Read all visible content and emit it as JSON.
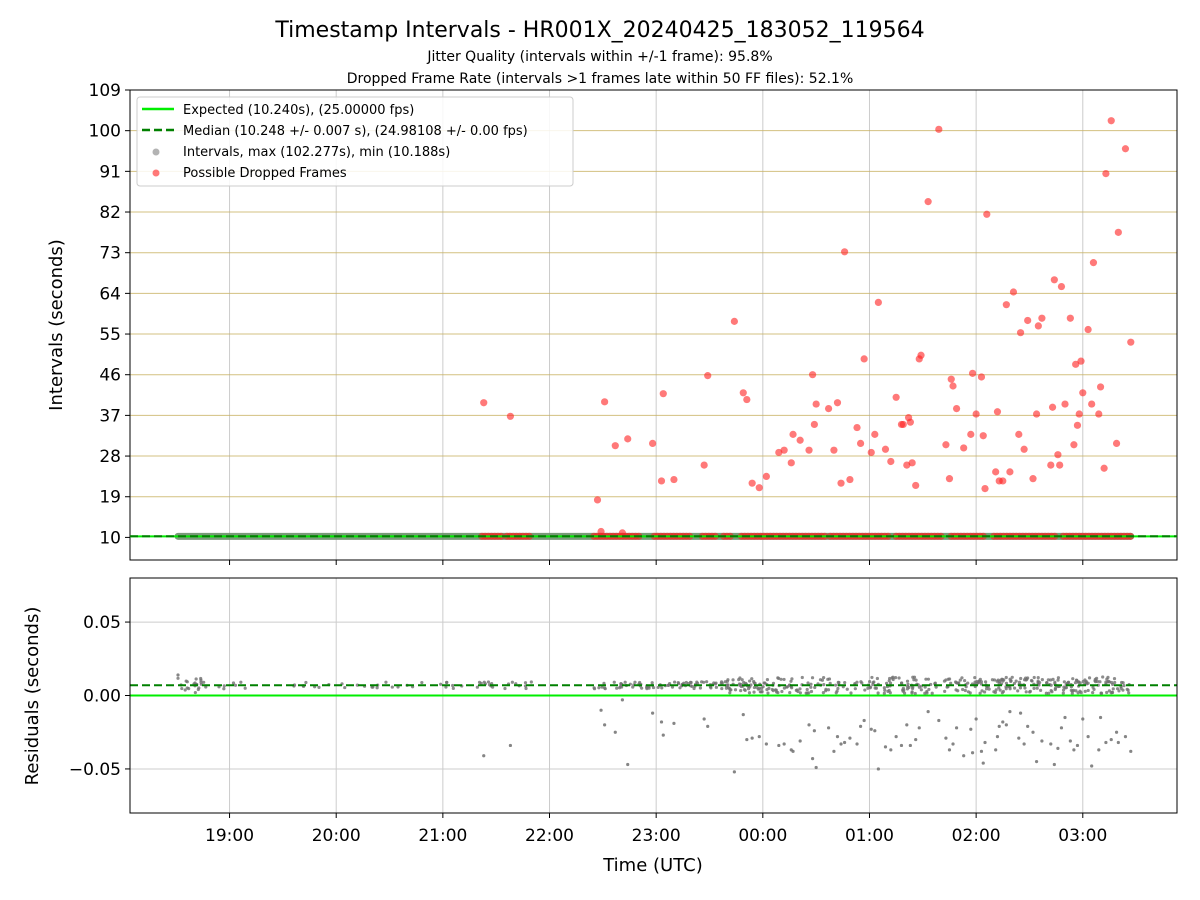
{
  "chart_data": [
    {
      "type": "scatter",
      "panel": "top",
      "title": "Timestamp Intervals - HR001X_20240425_183052_119564",
      "subtitle_1": "Jitter Quality (intervals within +/-1 frame): 95.8%",
      "subtitle_2": "Dropped Frame Rate (intervals >1 frames late within 50 FF files): 52.1%",
      "ylabel": "Intervals (seconds)",
      "ylim": [
        5,
        109
      ],
      "yticks": [
        "10",
        "19",
        "28",
        "37",
        "46",
        "55",
        "64",
        "73",
        "82",
        "91",
        "100",
        "109"
      ],
      "grid_y_color": "#c8b060",
      "legend_position": "upper-left",
      "legend": [
        {
          "label": "Expected (10.240s), (25.00000 fps)",
          "style": "solid-line",
          "color": "#00ee00"
        },
        {
          "label": "Median (10.248 +/- 0.007 s), (24.98108 +/- 0.00 fps)",
          "style": "dashed-line",
          "color": "#008000"
        },
        {
          "label": "Intervals, max (102.277s), min (10.188s)",
          "style": "dot",
          "color": "#808080"
        },
        {
          "label": "Possible Dropped Frames",
          "style": "dot",
          "color": "#ff2020"
        }
      ],
      "expected_interval": 10.24,
      "median_interval": 10.248,
      "normal_intervals_span": {
        "start": "18:31",
        "end": "03:27",
        "value": 10.24
      },
      "dropped_frame_clusters_at_10s": [
        [
          "21:22",
          "21:33"
        ],
        [
          "21:36",
          "21:49"
        ],
        [
          "22:25",
          "22:52"
        ],
        [
          "22:59",
          "23:20"
        ],
        [
          "23:26",
          "23:35"
        ],
        [
          "23:38",
          "23:43"
        ],
        [
          "23:48",
          "00:35"
        ],
        [
          "00:38",
          "01:12"
        ],
        [
          "01:15",
          "01:41"
        ],
        [
          "01:46",
          "02:05"
        ],
        [
          "02:10",
          "02:45"
        ],
        [
          "02:49",
          "03:27"
        ]
      ],
      "series": [
        {
          "name": "Possible Dropped Frames",
          "points": [
            [
              "21:23",
              39.8
            ],
            [
              "21:38",
              36.8
            ],
            [
              "22:27",
              18.3
            ],
            [
              "22:29",
              11.3
            ],
            [
              "22:31",
              40
            ],
            [
              "22:37",
              30.3
            ],
            [
              "22:41",
              11
            ],
            [
              "22:44",
              31.8
            ],
            [
              "22:58",
              30.8
            ],
            [
              "23:03",
              22.5
            ],
            [
              "23:04",
              41.8
            ],
            [
              "23:10",
              22.8
            ],
            [
              "23:27",
              26
            ],
            [
              "23:29",
              45.8
            ],
            [
              "23:44",
              57.8
            ],
            [
              "23:49",
              42
            ],
            [
              "23:51",
              40.5
            ],
            [
              "23:54",
              22
            ],
            [
              "23:58",
              21
            ],
            [
              "00:02",
              23.5
            ],
            [
              "00:09",
              28.8
            ],
            [
              "00:12",
              29.3
            ],
            [
              "00:16",
              26.5
            ],
            [
              "00:17",
              32.8
            ],
            [
              "00:21",
              31.5
            ],
            [
              "00:26",
              29.3
            ],
            [
              "00:28",
              46
            ],
            [
              "00:29",
              35
            ],
            [
              "00:30",
              39.5
            ],
            [
              "00:37",
              38.5
            ],
            [
              "00:40",
              29.3
            ],
            [
              "00:42",
              39.8
            ],
            [
              "00:44",
              22
            ],
            [
              "00:46",
              73.2
            ],
            [
              "00:49",
              22.8
            ],
            [
              "00:53",
              34.3
            ],
            [
              "00:55",
              30.8
            ],
            [
              "00:57",
              49.5
            ],
            [
              "01:01",
              28.8
            ],
            [
              "01:03",
              32.8
            ],
            [
              "01:05",
              62
            ],
            [
              "01:09",
              29.5
            ],
            [
              "01:12",
              26.8
            ],
            [
              "01:15",
              41
            ],
            [
              "01:18",
              35
            ],
            [
              "01:19",
              35
            ],
            [
              "01:21",
              26
            ],
            [
              "01:22",
              36.5
            ],
            [
              "01:23",
              35.5
            ],
            [
              "01:24",
              26.5
            ],
            [
              "01:26",
              21.5
            ],
            [
              "01:28",
              49.5
            ],
            [
              "01:29",
              50.3
            ],
            [
              "01:33",
              84.3
            ],
            [
              "01:39",
              100.3
            ],
            [
              "01:43",
              30.5
            ],
            [
              "01:45",
              23
            ],
            [
              "01:46",
              45
            ],
            [
              "01:47",
              43.5
            ],
            [
              "01:49",
              38.5
            ],
            [
              "01:53",
              29.8
            ],
            [
              "01:57",
              32.8
            ],
            [
              "01:58",
              46.3
            ],
            [
              "02:00",
              37.3
            ],
            [
              "02:03",
              45.5
            ],
            [
              "02:04",
              32.5
            ],
            [
              "02:05",
              20.8
            ],
            [
              "02:06",
              81.5
            ],
            [
              "02:11",
              24.5
            ],
            [
              "02:12",
              37.8
            ],
            [
              "02:13",
              22.5
            ],
            [
              "02:15",
              22.5
            ],
            [
              "02:17",
              61.5
            ],
            [
              "02:19",
              24.5
            ],
            [
              "02:21",
              64.3
            ],
            [
              "02:24",
              32.8
            ],
            [
              "02:25",
              55.3
            ],
            [
              "02:27",
              29.5
            ],
            [
              "02:29",
              58
            ],
            [
              "02:32",
              23
            ],
            [
              "02:34",
              37.3
            ],
            [
              "02:35",
              56.8
            ],
            [
              "02:37",
              58.5
            ],
            [
              "02:42",
              26
            ],
            [
              "02:43",
              38.8
            ],
            [
              "02:44",
              67
            ],
            [
              "02:46",
              28.3
            ],
            [
              "02:47",
              26
            ],
            [
              "02:48",
              65.5
            ],
            [
              "02:50",
              39.5
            ],
            [
              "02:53",
              58.5
            ],
            [
              "02:55",
              30.5
            ],
            [
              "02:56",
              48.3
            ],
            [
              "02:57",
              34.8
            ],
            [
              "02:58",
              37.3
            ],
            [
              "02:59",
              49
            ],
            [
              "03:00",
              42
            ],
            [
              "03:03",
              56
            ],
            [
              "03:05",
              39.5
            ],
            [
              "03:06",
              70.8
            ],
            [
              "03:09",
              37.3
            ],
            [
              "03:10",
              43.3
            ],
            [
              "03:12",
              25.3
            ],
            [
              "03:13",
              90.5
            ],
            [
              "03:16",
              102.2
            ],
            [
              "03:19",
              30.8
            ],
            [
              "03:20",
              77.5
            ],
            [
              "03:24",
              96
            ],
            [
              "03:27",
              53.2
            ]
          ]
        }
      ]
    },
    {
      "type": "scatter",
      "panel": "bottom",
      "xlabel": "Time (UTC)",
      "ylabel": "Residuals (seconds)",
      "ylim": [
        -0.08,
        0.08
      ],
      "yticks": [
        "0.05",
        "0.00",
        "−0.05"
      ],
      "ytick_values": [
        0.05,
        0.0,
        -0.05
      ],
      "xticks": [
        "19:00",
        "20:00",
        "21:00",
        "22:00",
        "23:00",
        "00:00",
        "01:00",
        "02:00",
        "03:00"
      ],
      "x_range": [
        "18:04",
        "03:53"
      ],
      "expected_residual": 0.0,
      "median_residual": 0.007,
      "series": [
        {
          "name": "Intervals",
          "color": "#707070",
          "dense_band": {
            "center": 0.007,
            "spread": 0.004
          },
          "outliers": [
            [
              "18:31",
              0.014
            ],
            [
              "21:23",
              -0.041
            ],
            [
              "21:38",
              -0.034
            ],
            [
              "22:29",
              -0.01
            ],
            [
              "22:31",
              -0.02
            ],
            [
              "22:37",
              -0.025
            ],
            [
              "22:41",
              -0.003
            ],
            [
              "22:44",
              -0.047
            ],
            [
              "22:58",
              -0.012
            ],
            [
              "23:03",
              -0.018
            ],
            [
              "23:04",
              -0.027
            ],
            [
              "23:10",
              -0.019
            ],
            [
              "23:27",
              -0.016
            ],
            [
              "23:29",
              -0.021
            ],
            [
              "23:44",
              -0.052
            ],
            [
              "23:49",
              -0.013
            ],
            [
              "23:51",
              -0.03
            ],
            [
              "23:54",
              -0.029
            ],
            [
              "23:58",
              -0.028
            ],
            [
              "00:02",
              -0.033
            ],
            [
              "00:09",
              -0.034
            ],
            [
              "00:12",
              -0.033
            ],
            [
              "00:16",
              -0.037
            ],
            [
              "00:17",
              -0.038
            ],
            [
              "00:21",
              -0.031
            ],
            [
              "00:26",
              -0.02
            ],
            [
              "00:28",
              -0.043
            ],
            [
              "00:29",
              -0.024
            ],
            [
              "00:30",
              -0.049
            ],
            [
              "00:37",
              -0.022
            ],
            [
              "00:40",
              -0.038
            ],
            [
              "00:42",
              -0.028
            ],
            [
              "00:44",
              -0.033
            ],
            [
              "00:46",
              -0.032
            ],
            [
              "00:49",
              -0.029
            ],
            [
              "00:53",
              -0.033
            ],
            [
              "00:55",
              -0.021
            ],
            [
              "00:57",
              -0.017
            ],
            [
              "01:01",
              -0.023
            ],
            [
              "01:03",
              -0.024
            ],
            [
              "01:05",
              -0.05
            ],
            [
              "01:09",
              -0.035
            ],
            [
              "01:12",
              -0.037
            ],
            [
              "01:15",
              -0.028
            ],
            [
              "01:18",
              -0.034
            ],
            [
              "01:21",
              -0.02
            ],
            [
              "01:23",
              -0.034
            ],
            [
              "01:26",
              -0.03
            ],
            [
              "01:28",
              -0.022
            ],
            [
              "01:33",
              -0.011
            ],
            [
              "01:39",
              -0.017
            ],
            [
              "01:43",
              -0.029
            ],
            [
              "01:45",
              -0.037
            ],
            [
              "01:47",
              -0.033
            ],
            [
              "01:49",
              -0.022
            ],
            [
              "01:53",
              -0.041
            ],
            [
              "01:57",
              -0.023
            ],
            [
              "01:58",
              -0.039
            ],
            [
              "02:00",
              -0.016
            ],
            [
              "02:03",
              -0.038
            ],
            [
              "02:04",
              -0.046
            ],
            [
              "02:05",
              -0.032
            ],
            [
              "02:11",
              -0.037
            ],
            [
              "02:12",
              -0.028
            ],
            [
              "02:13",
              -0.021
            ],
            [
              "02:15",
              -0.018
            ],
            [
              "02:17",
              -0.02
            ],
            [
              "02:19",
              -0.011
            ],
            [
              "02:24",
              -0.029
            ],
            [
              "02:25",
              -0.012
            ],
            [
              "02:27",
              -0.033
            ],
            [
              "02:29",
              -0.021
            ],
            [
              "02:32",
              -0.025
            ],
            [
              "02:34",
              -0.045
            ],
            [
              "02:37",
              -0.031
            ],
            [
              "02:42",
              -0.033
            ],
            [
              "02:44",
              -0.047
            ],
            [
              "02:46",
              -0.036
            ],
            [
              "02:48",
              -0.022
            ],
            [
              "02:50",
              -0.015
            ],
            [
              "02:53",
              -0.031
            ],
            [
              "02:55",
              -0.037
            ],
            [
              "02:57",
              -0.034
            ],
            [
              "03:00",
              -0.016
            ],
            [
              "03:03",
              -0.028
            ],
            [
              "03:05",
              -0.048
            ],
            [
              "03:09",
              -0.037
            ],
            [
              "03:10",
              -0.015
            ],
            [
              "03:13",
              -0.032
            ],
            [
              "03:16",
              -0.03
            ],
            [
              "03:19",
              -0.025
            ],
            [
              "03:20",
              -0.032
            ],
            [
              "03:24",
              -0.028
            ],
            [
              "03:27",
              -0.038
            ]
          ]
        }
      ]
    }
  ]
}
